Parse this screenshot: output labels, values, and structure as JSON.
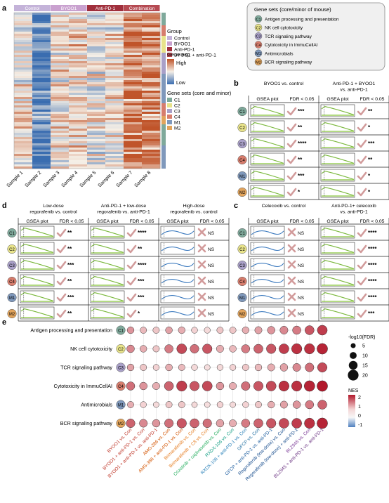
{
  "panel_a": {
    "letter": "a",
    "group_labels": [
      "Control",
      "BYOO1",
      "Anti-PD-1",
      "Combination"
    ],
    "group_colors": [
      "#c4b3d9",
      "#c9a1cf",
      "#a02f3c",
      "#b54a52"
    ],
    "samples": [
      "Sample 1",
      "Sample 2",
      "Sample 3",
      "Sample 4",
      "Sample 5",
      "Sample 6",
      "Sample 7",
      "Sample 8"
    ],
    "legend_group_title": "Group",
    "legend_group_items": [
      {
        "label": "Control",
        "color": "#c4b3d9"
      },
      {
        "label": "BYOO1",
        "color": "#c9a1cf"
      },
      {
        "label": "Anti-PD-1",
        "color": "#a02f3c"
      },
      {
        "label": "BYOO1 + anti-PD-1",
        "color": "#b54a52"
      }
    ],
    "legend_exp_title": "Gene exp",
    "legend_exp_high": "High",
    "legend_exp_low": "Low",
    "legend_sets_title": "Gene sets (core and minor)",
    "legend_sets_items": [
      {
        "label": "C1",
        "color": "#7fa99b"
      },
      {
        "label": "C2",
        "color": "#e8e38a"
      },
      {
        "label": "C3",
        "color": "#a9a0c8"
      },
      {
        "label": "C4",
        "color": "#d77d6d"
      },
      {
        "label": "M1",
        "color": "#7f98bb"
      },
      {
        "label": "M2",
        "color": "#e2a45c"
      }
    ]
  },
  "gene_sets_box": {
    "title": "Gene sets (core/minor of mouse)",
    "items": [
      {
        "code": "C1",
        "name": "Antigen processing and presentation",
        "color": "#7fa99b"
      },
      {
        "code": "C2",
        "name": "NK cell cytotoxicity",
        "color": "#e8e38a"
      },
      {
        "code": "C3",
        "name": "TCR signaling pathway",
        "color": "#a9a0c8"
      },
      {
        "code": "C4",
        "name": "Cytotoxicity in ImmuCellAI",
        "color": "#d77d6d"
      },
      {
        "code": "M1",
        "name": "Antimicrobials",
        "color": "#7f98bb"
      },
      {
        "code": "M2",
        "name": "BCR signaling pathway",
        "color": "#e2a45c"
      }
    ]
  },
  "common": {
    "gsea_plot": "GSEA plot",
    "fdr": "FDR < 0.05",
    "ns": "NS"
  },
  "panel_b": {
    "letter": "b",
    "comparisons": [
      {
        "title": [
          "BYOO1 vs. control"
        ],
        "shape": "up",
        "results": [
          "***",
          "**",
          "****",
          "**",
          "***",
          "*"
        ]
      },
      {
        "title": [
          "Anti-PD-1 + BYOO1",
          "vs. anti-PD-1"
        ],
        "shape": "up",
        "results": [
          "**",
          "*",
          "***",
          "**",
          "*",
          "*"
        ]
      }
    ]
  },
  "panel_c": {
    "letter": "c",
    "comparisons": [
      {
        "title": [
          "Celecoxib vs. control"
        ],
        "shape": "down",
        "results": [
          "NS",
          "NS",
          "NS",
          "NS",
          "NS",
          "NS"
        ]
      },
      {
        "title": [
          "Anti-PD-1+ celecoxib",
          "vs. anti-PD-1"
        ],
        "shape": "up",
        "results": [
          "****",
          "****",
          "****",
          "****",
          "****",
          "***"
        ]
      }
    ]
  },
  "panel_d": {
    "letter": "d",
    "comparisons": [
      {
        "title": [
          "Low-dose",
          "regorafenib vs. control"
        ],
        "shape": "up",
        "results": [
          "**",
          "**",
          "***",
          "**",
          "***",
          "**"
        ]
      },
      {
        "title": [
          "Anti-PD-1 + low-dose",
          "regorafenib vs. anti-PD-1"
        ],
        "shape": "up",
        "results": [
          "****",
          "**",
          "****",
          "***",
          "***",
          "*"
        ]
      },
      {
        "title": [
          "High-dose",
          "regorafenib vs. control"
        ],
        "shape": "down",
        "results": [
          "NS",
          "NS",
          "NS",
          "NS",
          "NS",
          "NS"
        ]
      }
    ]
  },
  "panel_e": {
    "letter": "e",
    "rows": [
      {
        "label": "Antigen processing and presentation",
        "code": "C1"
      },
      {
        "label": "NK cell cytotoxicity",
        "code": "C2"
      },
      {
        "label": "TCR signaling pathway",
        "code": "C3"
      },
      {
        "label": "Cytotoxicity in ImmuCellAI",
        "code": "C4"
      },
      {
        "label": "Antimicrobials",
        "code": "M1"
      },
      {
        "label": "BCR signaling pathway",
        "code": "M2"
      }
    ],
    "columns": [
      {
        "label": "BYOO1 vs. Con",
        "color": "#c0392b"
      },
      {
        "label": "BYOO1 + anti-PD-1 vs. Con",
        "color": "#c0392b"
      },
      {
        "label": "BYOO1 + anti-PD-1 vs. anti-PD-1",
        "color": "#c0392b"
      },
      {
        "label": "AMG-386 vs. Con",
        "color": "#d35400"
      },
      {
        "label": "AMG-386 + anti-PD-1 vs. Con",
        "color": "#d35400"
      },
      {
        "label": "Brimarafenib vs. Con",
        "color": "#e67e22"
      },
      {
        "label": "Brimarafenib + C8 vs. Con",
        "color": "#e67e22"
      },
      {
        "label": "Crizotinib + capivasertib vs. Con",
        "color": "#27ae60"
      },
      {
        "label": "RXDX-106 vs. Con",
        "color": "#16a085"
      },
      {
        "label": "RXDX-106 + anti-PD-1 vs. Con",
        "color": "#2980b9"
      },
      {
        "label": "GFCP vs. Con",
        "color": "#2471a3"
      },
      {
        "label": "GFCP + anti-PD-1 vs. anti-PD-1",
        "color": "#1f5fa0"
      },
      {
        "label": "Regorafenib (low-dose) vs. Con",
        "color": "#1a4f8f"
      },
      {
        "label": "Regorafenib (low-dose) + anti-PD-1",
        "color": "#1a4f8f"
      },
      {
        "label": "BLZ945 vs. Con",
        "color": "#7d3c98"
      },
      {
        "label": "BLZ945 + anti-PD-1 vs. anti-PD-1",
        "color": "#6c3483"
      }
    ],
    "legend_size_title": "-log10(FDR)",
    "legend_sizes": [
      5,
      10,
      15,
      20
    ],
    "legend_color_title": "NES",
    "legend_color_ticks": [
      2,
      1,
      0,
      -1
    ],
    "nes": [
      [
        1.4,
        1.1,
        1.0,
        1.3,
        1.2,
        0.9,
        0.8,
        1.0,
        1.0,
        1.2,
        1.3,
        1.4,
        1.5,
        1.6,
        1.9,
        2.1
      ],
      [
        1.5,
        1.2,
        1.0,
        1.6,
        2.0,
        1.7,
        1.9,
        1.2,
        1.1,
        1.6,
        1.8,
        1.9,
        2.1,
        2.2,
        2.2,
        2.3
      ],
      [
        1.3,
        1.0,
        0.9,
        1.2,
        1.1,
        0.8,
        0.7,
        0.8,
        0.9,
        1.0,
        1.1,
        1.2,
        1.3,
        1.5,
        1.7,
        2.0
      ],
      [
        1.7,
        1.4,
        1.2,
        1.8,
        2.1,
        1.9,
        2.0,
        1.4,
        1.2,
        1.7,
        1.9,
        2.0,
        2.2,
        2.2,
        2.3,
        2.4
      ],
      [
        1.2,
        0.9,
        0.8,
        1.0,
        1.0,
        0.8,
        0.7,
        0.9,
        0.8,
        0.9,
        1.0,
        1.2,
        1.3,
        1.4,
        1.6,
        1.8
      ],
      [
        1.8,
        1.5,
        1.4,
        1.7,
        1.9,
        1.8,
        1.7,
        1.3,
        1.2,
        1.6,
        1.8,
        1.9,
        2.0,
        2.1,
        2.2,
        2.3
      ]
    ],
    "neg_log10_fdr": [
      [
        10,
        9,
        9,
        10,
        10,
        8,
        8,
        9,
        9,
        10,
        11,
        12,
        13,
        14,
        16,
        18
      ],
      [
        12,
        10,
        9,
        14,
        18,
        15,
        17,
        11,
        10,
        14,
        16,
        17,
        18,
        19,
        19,
        20
      ],
      [
        10,
        9,
        8,
        10,
        9,
        8,
        7,
        8,
        8,
        9,
        10,
        11,
        12,
        13,
        15,
        17
      ],
      [
        14,
        12,
        11,
        16,
        19,
        17,
        18,
        12,
        11,
        15,
        17,
        18,
        19,
        19,
        20,
        20
      ],
      [
        9,
        8,
        7,
        9,
        9,
        7,
        7,
        8,
        7,
        8,
        9,
        10,
        11,
        12,
        14,
        16
      ],
      [
        15,
        13,
        12,
        15,
        17,
        16,
        15,
        12,
        11,
        14,
        16,
        17,
        18,
        18,
        19,
        20
      ]
    ]
  }
}
